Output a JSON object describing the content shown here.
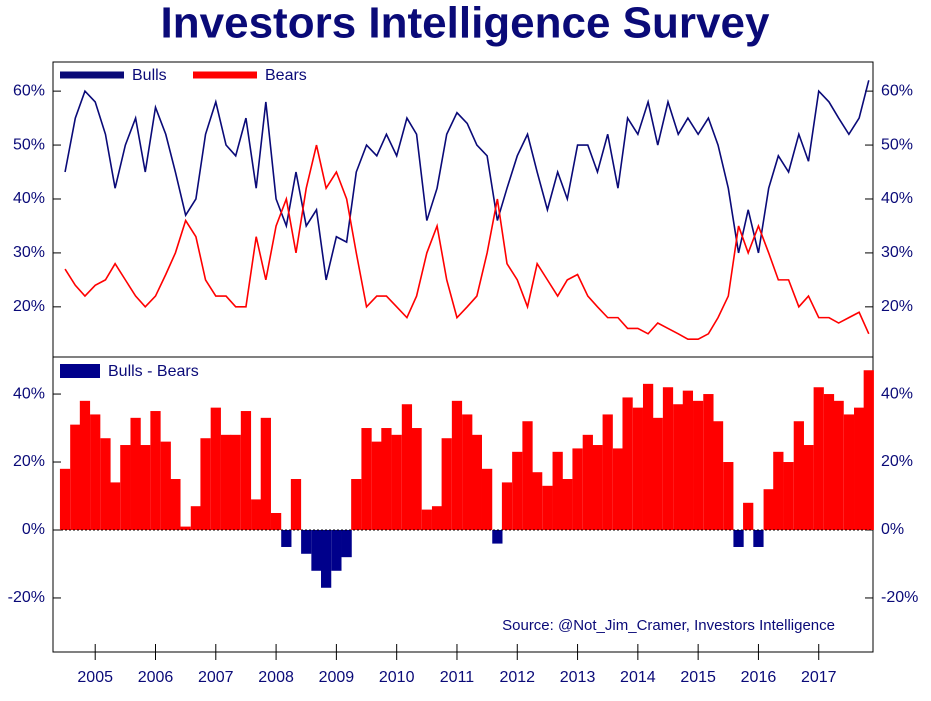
{
  "chart_data": [
    {
      "type": "line",
      "title": "Investors Intelligence Survey",
      "x": [
        2004.5,
        2004.67,
        2004.83,
        2005,
        2005.17,
        2005.33,
        2005.5,
        2005.67,
        2005.83,
        2006,
        2006.17,
        2006.33,
        2006.5,
        2006.67,
        2006.83,
        2007,
        2007.17,
        2007.33,
        2007.5,
        2007.67,
        2007.83,
        2008,
        2008.17,
        2008.33,
        2008.5,
        2008.67,
        2008.83,
        2009,
        2009.17,
        2009.33,
        2009.5,
        2009.67,
        2009.83,
        2010,
        2010.17,
        2010.33,
        2010.5,
        2010.67,
        2010.83,
        2011,
        2011.17,
        2011.33,
        2011.5,
        2011.67,
        2011.83,
        2012,
        2012.17,
        2012.33,
        2012.5,
        2012.67,
        2012.83,
        2013,
        2013.17,
        2013.33,
        2013.5,
        2013.67,
        2013.83,
        2014,
        2014.17,
        2014.33,
        2014.5,
        2014.67,
        2014.83,
        2015,
        2015.17,
        2015.33,
        2015.5,
        2015.67,
        2015.83,
        2016,
        2016.17,
        2016.33,
        2016.5,
        2016.67,
        2016.83,
        2017,
        2017.17,
        2017.33,
        2017.5,
        2017.67,
        2017.83
      ],
      "series": [
        {
          "name": "Bulls",
          "color": "#0a0a78",
          "values": [
            45,
            55,
            60,
            58,
            52,
            42,
            50,
            55,
            45,
            57,
            52,
            45,
            37,
            40,
            52,
            58,
            50,
            48,
            55,
            42,
            58,
            40,
            35,
            45,
            35,
            38,
            25,
            33,
            32,
            45,
            50,
            48,
            52,
            48,
            55,
            52,
            36,
            42,
            52,
            56,
            54,
            50,
            48,
            36,
            42,
            48,
            52,
            45,
            38,
            45,
            40,
            50,
            50,
            45,
            52,
            42,
            55,
            52,
            58,
            50,
            58,
            52,
            55,
            52,
            55,
            50,
            42,
            30,
            38,
            30,
            42,
            48,
            45,
            52,
            47,
            60,
            58,
            55,
            52,
            55,
            62
          ]
        },
        {
          "name": "Bears",
          "color": "#ff0000",
          "values": [
            27,
            24,
            22,
            24,
            25,
            28,
            25,
            22,
            20,
            22,
            26,
            30,
            36,
            33,
            25,
            22,
            22,
            20,
            20,
            33,
            25,
            35,
            40,
            30,
            42,
            50,
            42,
            45,
            40,
            30,
            20,
            22,
            22,
            20,
            18,
            22,
            30,
            35,
            25,
            18,
            20,
            22,
            30,
            40,
            28,
            25,
            20,
            28,
            25,
            22,
            25,
            26,
            22,
            20,
            18,
            18,
            16,
            16,
            15,
            17,
            16,
            15,
            14,
            14,
            15,
            18,
            22,
            35,
            30,
            35,
            30,
            25,
            25,
            20,
            22,
            18,
            18,
            17,
            18,
            19,
            15
          ]
        }
      ],
      "xlim": [
        2004.3,
        2017.9
      ],
      "ylim": [
        10.7,
        65.4
      ],
      "yticks": [
        {
          "value": 20,
          "label": "20%"
        },
        {
          "value": 30,
          "label": "30%"
        },
        {
          "value": 40,
          "label": "40%"
        },
        {
          "value": 50,
          "label": "50%"
        },
        {
          "value": 60,
          "label": "60%"
        }
      ]
    },
    {
      "type": "bar",
      "x": [
        2004.5,
        2004.67,
        2004.83,
        2005,
        2005.17,
        2005.33,
        2005.5,
        2005.67,
        2005.83,
        2006,
        2006.17,
        2006.33,
        2006.5,
        2006.67,
        2006.83,
        2007,
        2007.17,
        2007.33,
        2007.5,
        2007.67,
        2007.83,
        2008,
        2008.17,
        2008.33,
        2008.5,
        2008.67,
        2008.83,
        2009,
        2009.17,
        2009.33,
        2009.5,
        2009.67,
        2009.83,
        2010,
        2010.17,
        2010.33,
        2010.5,
        2010.67,
        2010.83,
        2011,
        2011.17,
        2011.33,
        2011.5,
        2011.67,
        2011.83,
        2012,
        2012.17,
        2012.33,
        2012.5,
        2012.67,
        2012.83,
        2013,
        2013.17,
        2013.33,
        2013.5,
        2013.67,
        2013.83,
        2014,
        2014.17,
        2014.33,
        2014.5,
        2014.67,
        2014.83,
        2015,
        2015.17,
        2015.33,
        2015.5,
        2015.67,
        2015.83,
        2016,
        2016.17,
        2016.33,
        2016.5,
        2016.67,
        2016.83,
        2017,
        2017.17,
        2017.33,
        2017.5,
        2017.67,
        2017.83
      ],
      "series": [
        {
          "name": "Bulls - Bears",
          "color": "#ff0000",
          "negative_color": "#00008b",
          "values": [
            18,
            31,
            38,
            34,
            27,
            14,
            25,
            33,
            25,
            35,
            26,
            15,
            1,
            7,
            27,
            36,
            28,
            28,
            35,
            9,
            33,
            5,
            -5,
            15,
            -7,
            -12,
            -17,
            -12,
            -8,
            15,
            30,
            26,
            30,
            28,
            37,
            30,
            6,
            7,
            27,
            38,
            34,
            28,
            18,
            -4,
            14,
            23,
            32,
            17,
            13,
            23,
            15,
            24,
            28,
            25,
            34,
            24,
            39,
            36,
            43,
            33,
            42,
            37,
            41,
            38,
            40,
            32,
            20,
            -5,
            8,
            -5,
            12,
            23,
            20,
            32,
            25,
            42,
            40,
            38,
            34,
            36,
            47
          ]
        }
      ],
      "xlim": [
        2004.3,
        2017.9
      ],
      "xticks": [
        2005,
        2006,
        2007,
        2008,
        2009,
        2010,
        2011,
        2012,
        2013,
        2014,
        2015,
        2016,
        2017
      ],
      "ylim": [
        -35.9,
        50.9
      ],
      "yticks": [
        {
          "value": -20,
          "label": "-20%"
        },
        {
          "value": 0,
          "label": "0%"
        },
        {
          "value": 20,
          "label": "20%"
        },
        {
          "value": 40,
          "label": "40%"
        }
      ],
      "annotation": "Source: @Not_Jim_Cramer, Investors Intelligence"
    }
  ]
}
